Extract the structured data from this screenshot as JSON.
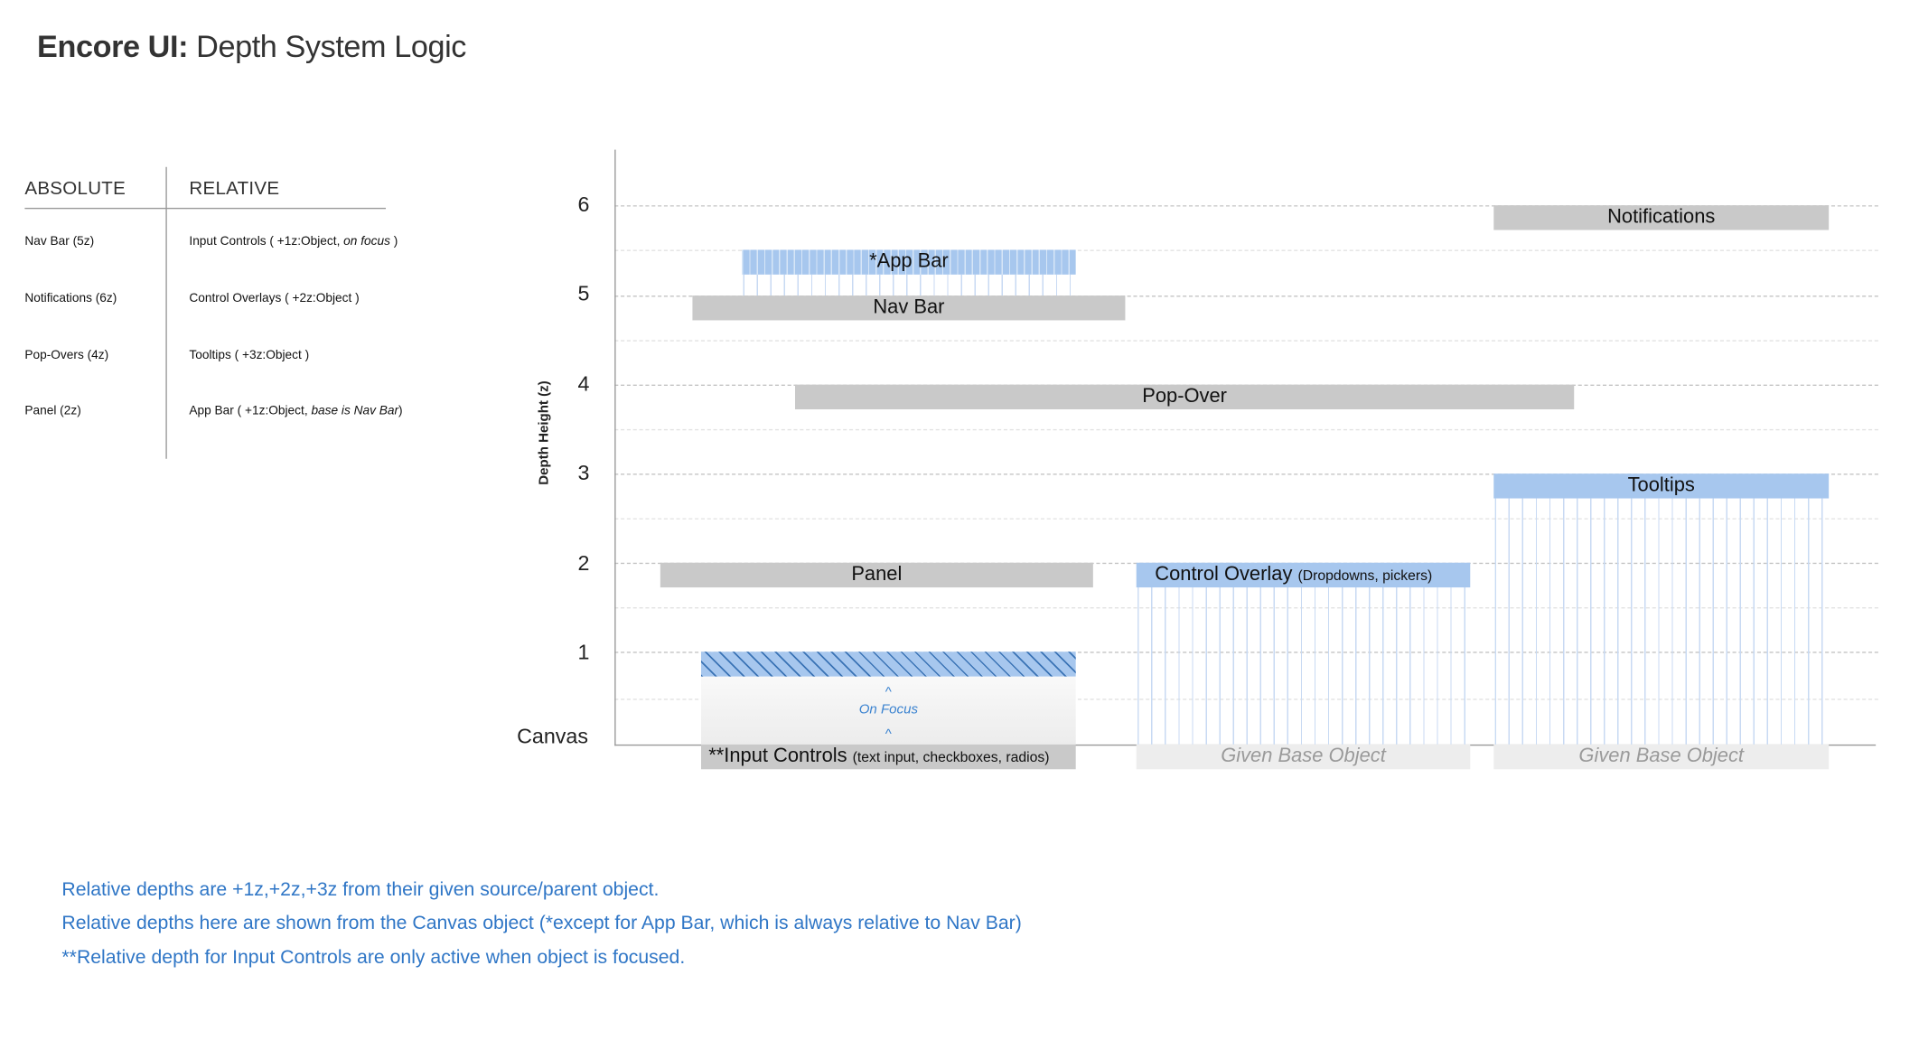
{
  "header": {
    "title_bold": "Encore UI:",
    "title_rest": " Depth System Logic"
  },
  "legend_table": {
    "col_absolute": "ABSOLUTE",
    "col_relative": "RELATIVE",
    "absolute": [
      "Nav Bar (5z)",
      "Notifications (6z)",
      "Pop-Overs (4z)",
      "Panel (2z)"
    ],
    "relative": [
      {
        "text": "Input Controls ( +1z:Object, ",
        "em": "on focus",
        "tail": " )"
      },
      {
        "text": "Control Overlays ( +2z:Object )",
        "em": "",
        "tail": ""
      },
      {
        "text": "Tooltips ( +3z:Object )",
        "em": "",
        "tail": ""
      },
      {
        "text": "App Bar ( +1z:Object, ",
        "em": "base is Nav Bar",
        "tail": ")"
      }
    ]
  },
  "chart": {
    "y_axis_label": "Depth Height (z)",
    "y_ticks": [
      "6",
      "5",
      "4",
      "3",
      "2",
      "1"
    ],
    "baseline_label": "Canvas",
    "bars": {
      "notifications": "Notifications",
      "app_bar": "*App Bar",
      "nav_bar": "Nav Bar",
      "pop_over": "Pop-Over",
      "tooltips": "Tooltips",
      "panel": "Panel",
      "control_overlay": "Control Overlay",
      "control_overlay_note": "(Dropdowns, pickers)",
      "input_controls": "**Input Controls",
      "input_controls_note": "(text input, checkboxes, radios)",
      "base_object_1": "Given Base Object",
      "base_object_2": "Given Base Object"
    },
    "on_focus": {
      "label": "On Focus",
      "caret": "^"
    },
    "colors": {
      "absolute": "#c9c9c9",
      "relative": "#a7c7ee",
      "hatch": "#3a73b5",
      "note_text": "#2f76c6"
    }
  },
  "notes": [
    "Relative depths are +1z,+2z,+3z from their given source/parent object.",
    "Relative depths here are shown from the Canvas object (*except for App Bar, which is always relative to Nav Bar)",
    "**Relative depth for Input Controls are only active when object is focused."
  ]
}
